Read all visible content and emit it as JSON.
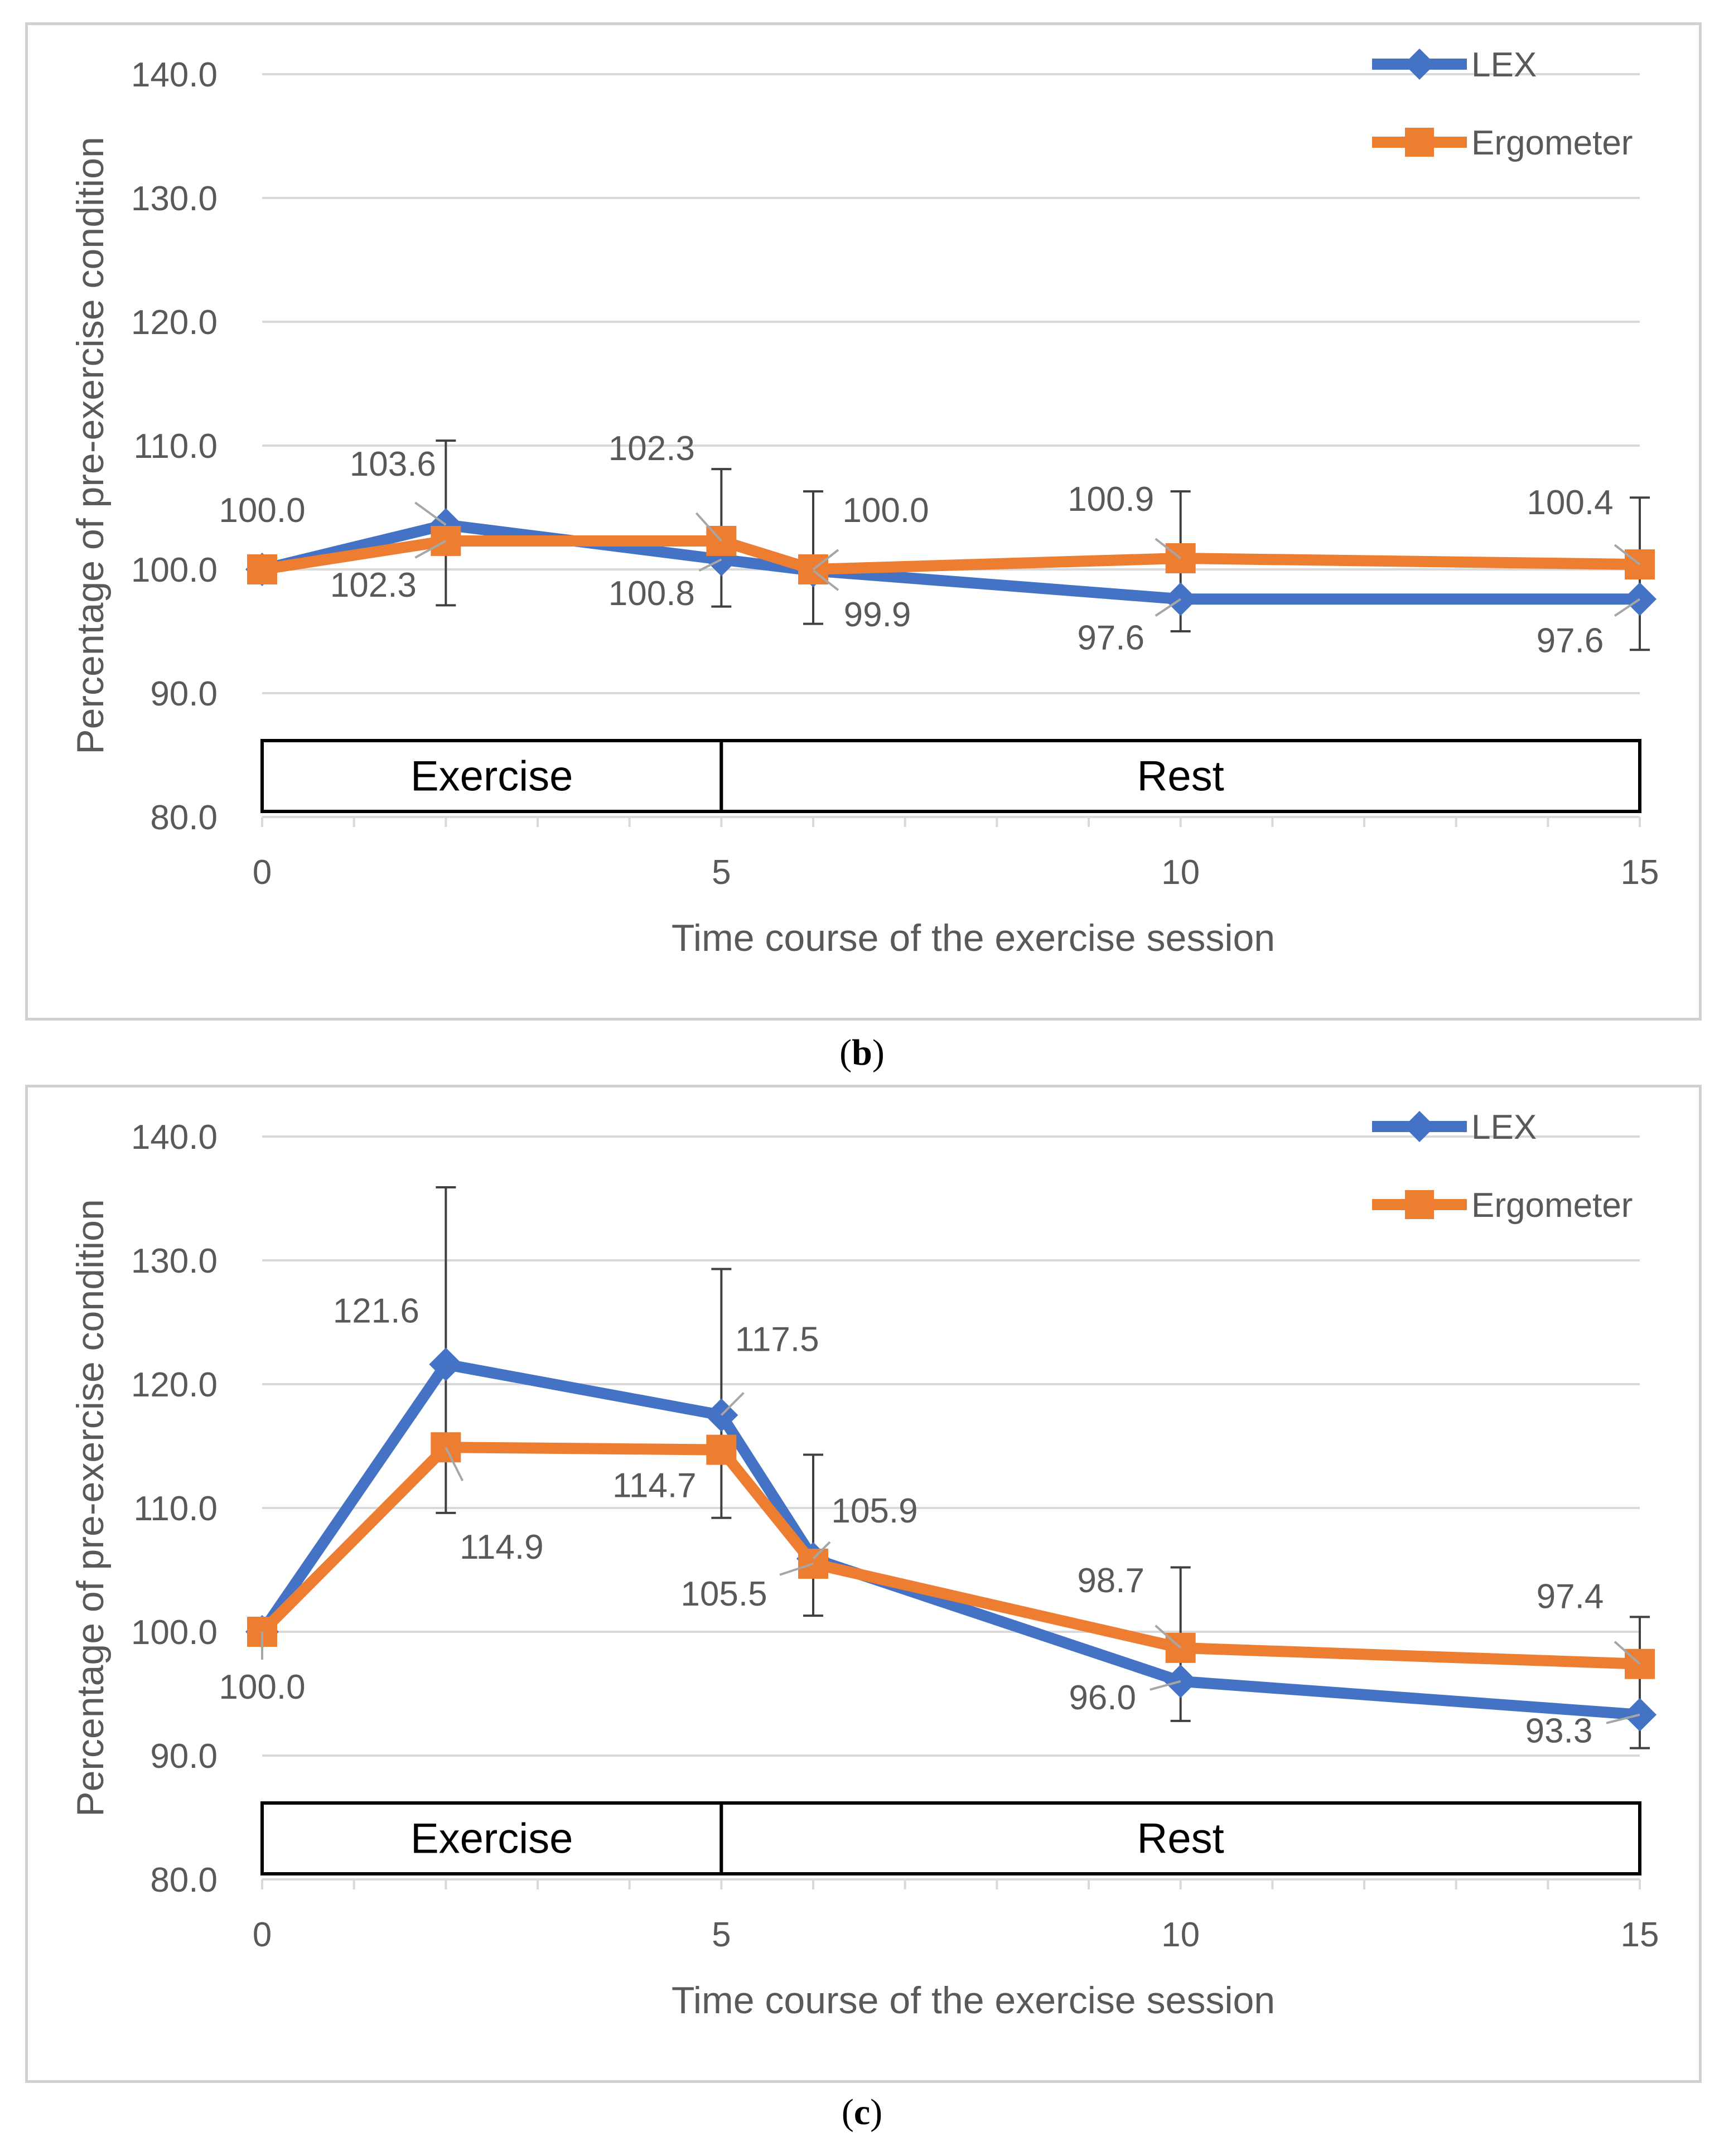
{
  "panels": [
    {
      "id": "b",
      "caption_open": "(",
      "caption_letter": "b",
      "caption_close": ")"
    },
    {
      "id": "c",
      "caption_open": "(",
      "caption_letter": "c",
      "caption_close": ")"
    }
  ],
  "colors": {
    "lex": "#4472C4",
    "ergometer": "#ED7D31",
    "grid": "#d9d9d9",
    "text": "#595959",
    "leader": "#a6a6a6"
  },
  "chart_data": [
    {
      "panel": "b",
      "type": "line",
      "title": "",
      "xlabel": "Time course of the exercise session",
      "ylabel": "Percentage of pre-exercise condition",
      "xlim": [
        0,
        15
      ],
      "ylim": [
        80,
        140
      ],
      "x_ticks": [
        0,
        5,
        10,
        15
      ],
      "y_ticks": [
        80,
        90,
        100,
        110,
        120,
        130,
        140
      ],
      "y_tick_labels": [
        "80.0",
        "90.0",
        "100.0",
        "110.0",
        "120.0",
        "130.0",
        "140.0"
      ],
      "x": [
        0,
        2,
        5,
        6,
        10,
        15
      ],
      "legend_position": "top-right",
      "phases": [
        {
          "label": "Exercise",
          "start": 0,
          "end": 5
        },
        {
          "label": "Rest",
          "start": 5,
          "end": 15
        }
      ],
      "series": [
        {
          "name": "LEX",
          "marker": "diamond",
          "values": [
            100.0,
            103.6,
            100.8,
            99.9,
            97.6,
            97.6
          ]
        },
        {
          "name": "Ergometer",
          "marker": "square",
          "values": [
            100.0,
            102.3,
            102.3,
            100.0,
            100.9,
            100.4
          ]
        }
      ],
      "error_bars": [
        {
          "x": 2,
          "low": 97.1,
          "high": 110.4
        },
        {
          "x": 5,
          "low": 97.0,
          "high": 108.1
        },
        {
          "x": 6,
          "low": 95.6,
          "high": 106.3
        },
        {
          "x": 10,
          "low": 95.0,
          "high": 106.3
        },
        {
          "x": 15,
          "low": 93.5,
          "high": 105.8
        }
      ],
      "data_labels": [
        {
          "text": "100.0",
          "x": 0,
          "y": 100.0
        },
        {
          "text": "103.6",
          "x": 2,
          "y": 103.6
        },
        {
          "text": "102.3",
          "x": 2,
          "y": 102.3
        },
        {
          "text": "102.3",
          "x": 5,
          "y": 102.3
        },
        {
          "text": "100.8",
          "x": 5,
          "y": 100.8
        },
        {
          "text": "100.0",
          "x": 6,
          "y": 100.0
        },
        {
          "text": "99.9",
          "x": 6,
          "y": 99.9
        },
        {
          "text": "100.9",
          "x": 10,
          "y": 100.9
        },
        {
          "text": "97.6",
          "x": 10,
          "y": 97.6
        },
        {
          "text": "100.4",
          "x": 15,
          "y": 100.4
        },
        {
          "text": "97.6",
          "x": 15,
          "y": 97.6
        }
      ]
    },
    {
      "panel": "c",
      "type": "line",
      "title": "",
      "xlabel": "Time course of the exercise session",
      "ylabel": "Percentage of pre-exercise condition",
      "xlim": [
        0,
        15
      ],
      "ylim": [
        80,
        140
      ],
      "x_ticks": [
        0,
        5,
        10,
        15
      ],
      "y_ticks": [
        80,
        90,
        100,
        110,
        120,
        130,
        140
      ],
      "y_tick_labels": [
        "80.0",
        "90.0",
        "100.0",
        "110.0",
        "120.0",
        "130.0",
        "140.0"
      ],
      "x": [
        0,
        2,
        5,
        6,
        10,
        15
      ],
      "legend_position": "top-right",
      "phases": [
        {
          "label": "Exercise",
          "start": 0,
          "end": 5
        },
        {
          "label": "Rest",
          "start": 5,
          "end": 15
        }
      ],
      "series": [
        {
          "name": "LEX",
          "marker": "diamond",
          "values": [
            100.0,
            121.6,
            117.5,
            105.9,
            96.0,
            93.3
          ]
        },
        {
          "name": "Ergometer",
          "marker": "square",
          "values": [
            100.0,
            114.9,
            114.7,
            105.5,
            98.7,
            97.4
          ]
        }
      ],
      "error_bars": [
        {
          "x": 2,
          "low": 109.6,
          "high": 135.9
        },
        {
          "x": 5,
          "low": 109.2,
          "high": 129.3
        },
        {
          "x": 6,
          "low": 101.3,
          "high": 114.3
        },
        {
          "x": 10,
          "low": 92.8,
          "high": 105.2
        },
        {
          "x": 15,
          "low": 90.6,
          "high": 101.2
        }
      ],
      "data_labels": [
        {
          "text": "100.0",
          "x": 0,
          "y": 100.0
        },
        {
          "text": "121.6",
          "x": 2,
          "y": 121.6
        },
        {
          "text": "114.9",
          "x": 2,
          "y": 114.9
        },
        {
          "text": "117.5",
          "x": 5,
          "y": 117.5
        },
        {
          "text": "114.7",
          "x": 5,
          "y": 114.7
        },
        {
          "text": "105.9",
          "x": 6,
          "y": 105.9
        },
        {
          "text": "105.5",
          "x": 6,
          "y": 105.5
        },
        {
          "text": "98.7",
          "x": 10,
          "y": 98.7
        },
        {
          "text": "96.0",
          "x": 10,
          "y": 96.0
        },
        {
          "text": "97.4",
          "x": 15,
          "y": 97.4
        },
        {
          "text": "93.3",
          "x": 15,
          "y": 93.3
        }
      ]
    }
  ]
}
